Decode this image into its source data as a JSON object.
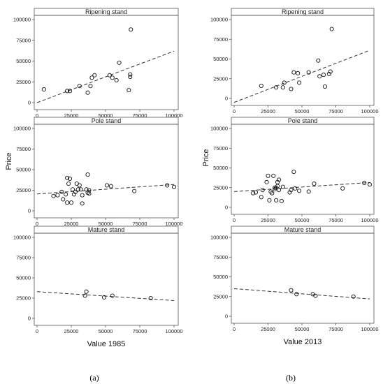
{
  "figure": {
    "ylabel": "Price",
    "sub_labels": [
      "(a)",
      "(b)"
    ],
    "xlabels": [
      "Value 1985",
      "Value 2013"
    ]
  },
  "chart_data": [
    {
      "type": "scatter",
      "title": "Ripening stand",
      "xlabel": "",
      "ylabel": "",
      "xlim": [
        0,
        100000
      ],
      "ylim": [
        0,
        100000
      ],
      "x_ticks": [
        "0",
        "25000",
        "50000",
        "75000",
        "100000"
      ],
      "y_ticks": [
        "0",
        "25000",
        "50000",
        "75000",
        "100000"
      ],
      "x": [
        5000,
        22000,
        24000,
        31000,
        37000,
        39000,
        40000,
        42000,
        53000,
        55000,
        58000,
        60000,
        67000,
        68000,
        68000,
        68500
      ],
      "y": [
        16000,
        14000,
        14000,
        20000,
        12000,
        20000,
        30000,
        33000,
        33000,
        30000,
        27000,
        48000,
        15000,
        31000,
        34000,
        88000
      ],
      "fit": {
        "style": "dashed",
        "x": [
          0,
          100000
        ],
        "y": [
          0,
          62000
        ]
      }
    },
    {
      "type": "scatter",
      "title": "Ripening stand",
      "xlabel": "",
      "ylabel": "",
      "xlim": [
        0,
        100000
      ],
      "ylim": [
        0,
        100000
      ],
      "x_ticks": [
        "0",
        "25000",
        "50000",
        "75000",
        "100000"
      ],
      "y_ticks": [
        "0",
        "25000",
        "50000",
        "75000",
        "100000"
      ],
      "x": [
        20000,
        31000,
        36000,
        37000,
        42000,
        44000,
        47000,
        48000,
        55000,
        62000,
        63000,
        66000,
        67000,
        70000,
        71000,
        72000
      ],
      "y": [
        16000,
        14000,
        14000,
        20000,
        12000,
        33000,
        32000,
        20000,
        33000,
        48000,
        28000,
        30000,
        15000,
        31000,
        34000,
        88000
      ],
      "fit": {
        "style": "dashed",
        "x": [
          0,
          100000
        ],
        "y": [
          -5000,
          61000
        ]
      }
    },
    {
      "type": "scatter",
      "title": "Pole stand",
      "xlabel": "",
      "ylabel": "Price",
      "xlim": [
        0,
        100000
      ],
      "ylim": [
        0,
        100000
      ],
      "x_ticks": [
        "0",
        "25000",
        "50000",
        "75000",
        "100000"
      ],
      "y_ticks": [
        "0",
        "25000",
        "50000",
        "75000",
        "100000"
      ],
      "x": [
        12000,
        15000,
        18000,
        19000,
        21000,
        22000,
        22000,
        23000,
        24000,
        25000,
        26000,
        27000,
        28000,
        29000,
        30000,
        31000,
        32000,
        33000,
        33000,
        36000,
        37000,
        37000,
        38000,
        38000,
        51000,
        54000,
        71000,
        95000,
        100000
      ],
      "y": [
        18000,
        19000,
        23000,
        14000,
        20000,
        40000,
        10000,
        33000,
        39000,
        10000,
        26000,
        20000,
        23000,
        33000,
        26000,
        31000,
        26000,
        19000,
        9000,
        26000,
        44000,
        22000,
        25000,
        21000,
        31000,
        30000,
        24000,
        31000,
        29000
      ],
      "fit": {
        "style": "dashed",
        "x": [
          0,
          100000
        ],
        "y": [
          20500,
          32000
        ]
      }
    },
    {
      "type": "scatter",
      "title": "Pole stand",
      "xlabel": "",
      "ylabel": "Price",
      "xlim": [
        0,
        100000
      ],
      "ylim": [
        0,
        100000
      ],
      "x_ticks": [
        "0",
        "25000",
        "50000",
        "75000",
        "100000"
      ],
      "y_ticks": [
        "0",
        "25000",
        "50000",
        "75000",
        "100000"
      ],
      "x": [
        14000,
        16000,
        20000,
        21000,
        24000,
        25000,
        26000,
        27000,
        28000,
        29000,
        30000,
        30000,
        31000,
        31000,
        32000,
        32000,
        33000,
        33000,
        35000,
        36000,
        41000,
        42000,
        44000,
        45000,
        48000,
        55000,
        59000,
        80000,
        96000,
        100000
      ],
      "y": [
        18000,
        19000,
        13000,
        22000,
        32000,
        40000,
        9000,
        20000,
        18000,
        40000,
        23000,
        25000,
        9000,
        25000,
        27000,
        32000,
        35000,
        22000,
        8000,
        26000,
        19000,
        22000,
        45000,
        24000,
        21000,
        20000,
        30000,
        24000,
        31000,
        29000
      ],
      "fit": {
        "style": "dashed",
        "x": [
          0,
          100000
        ],
        "y": [
          20000,
          31500
        ]
      }
    },
    {
      "type": "scatter",
      "title": "Mature stand",
      "xlabel": "Value 1985",
      "ylabel": "",
      "xlim": [
        0,
        100000
      ],
      "ylim": [
        0,
        100000
      ],
      "x_ticks": [
        "0",
        "25000",
        "50000",
        "75000",
        "100000"
      ],
      "y_ticks": [
        "0",
        "25000",
        "50000",
        "75000",
        "100000"
      ],
      "x": [
        35000,
        36000,
        49000,
        55000,
        83000
      ],
      "y": [
        28000,
        33000,
        26000,
        28000,
        25000
      ],
      "fit": {
        "style": "dashed",
        "x": [
          0,
          100000
        ],
        "y": [
          33000,
          22000
        ]
      }
    },
    {
      "type": "scatter",
      "title": "Mature stand",
      "xlabel": "Value 2013",
      "ylabel": "",
      "xlim": [
        0,
        100000
      ],
      "ylim": [
        0,
        100000
      ],
      "x_ticks": [
        "0",
        "25000",
        "50000",
        "75000",
        "100000"
      ],
      "y_ticks": [
        "0",
        "25000",
        "50000",
        "75000",
        "100000"
      ],
      "x": [
        42000,
        46000,
        58000,
        60000,
        88000
      ],
      "y": [
        33000,
        28000,
        28000,
        26000,
        25000
      ],
      "fit": {
        "style": "dashed",
        "x": [
          0,
          100000
        ],
        "y": [
          35000,
          22000
        ]
      }
    }
  ]
}
